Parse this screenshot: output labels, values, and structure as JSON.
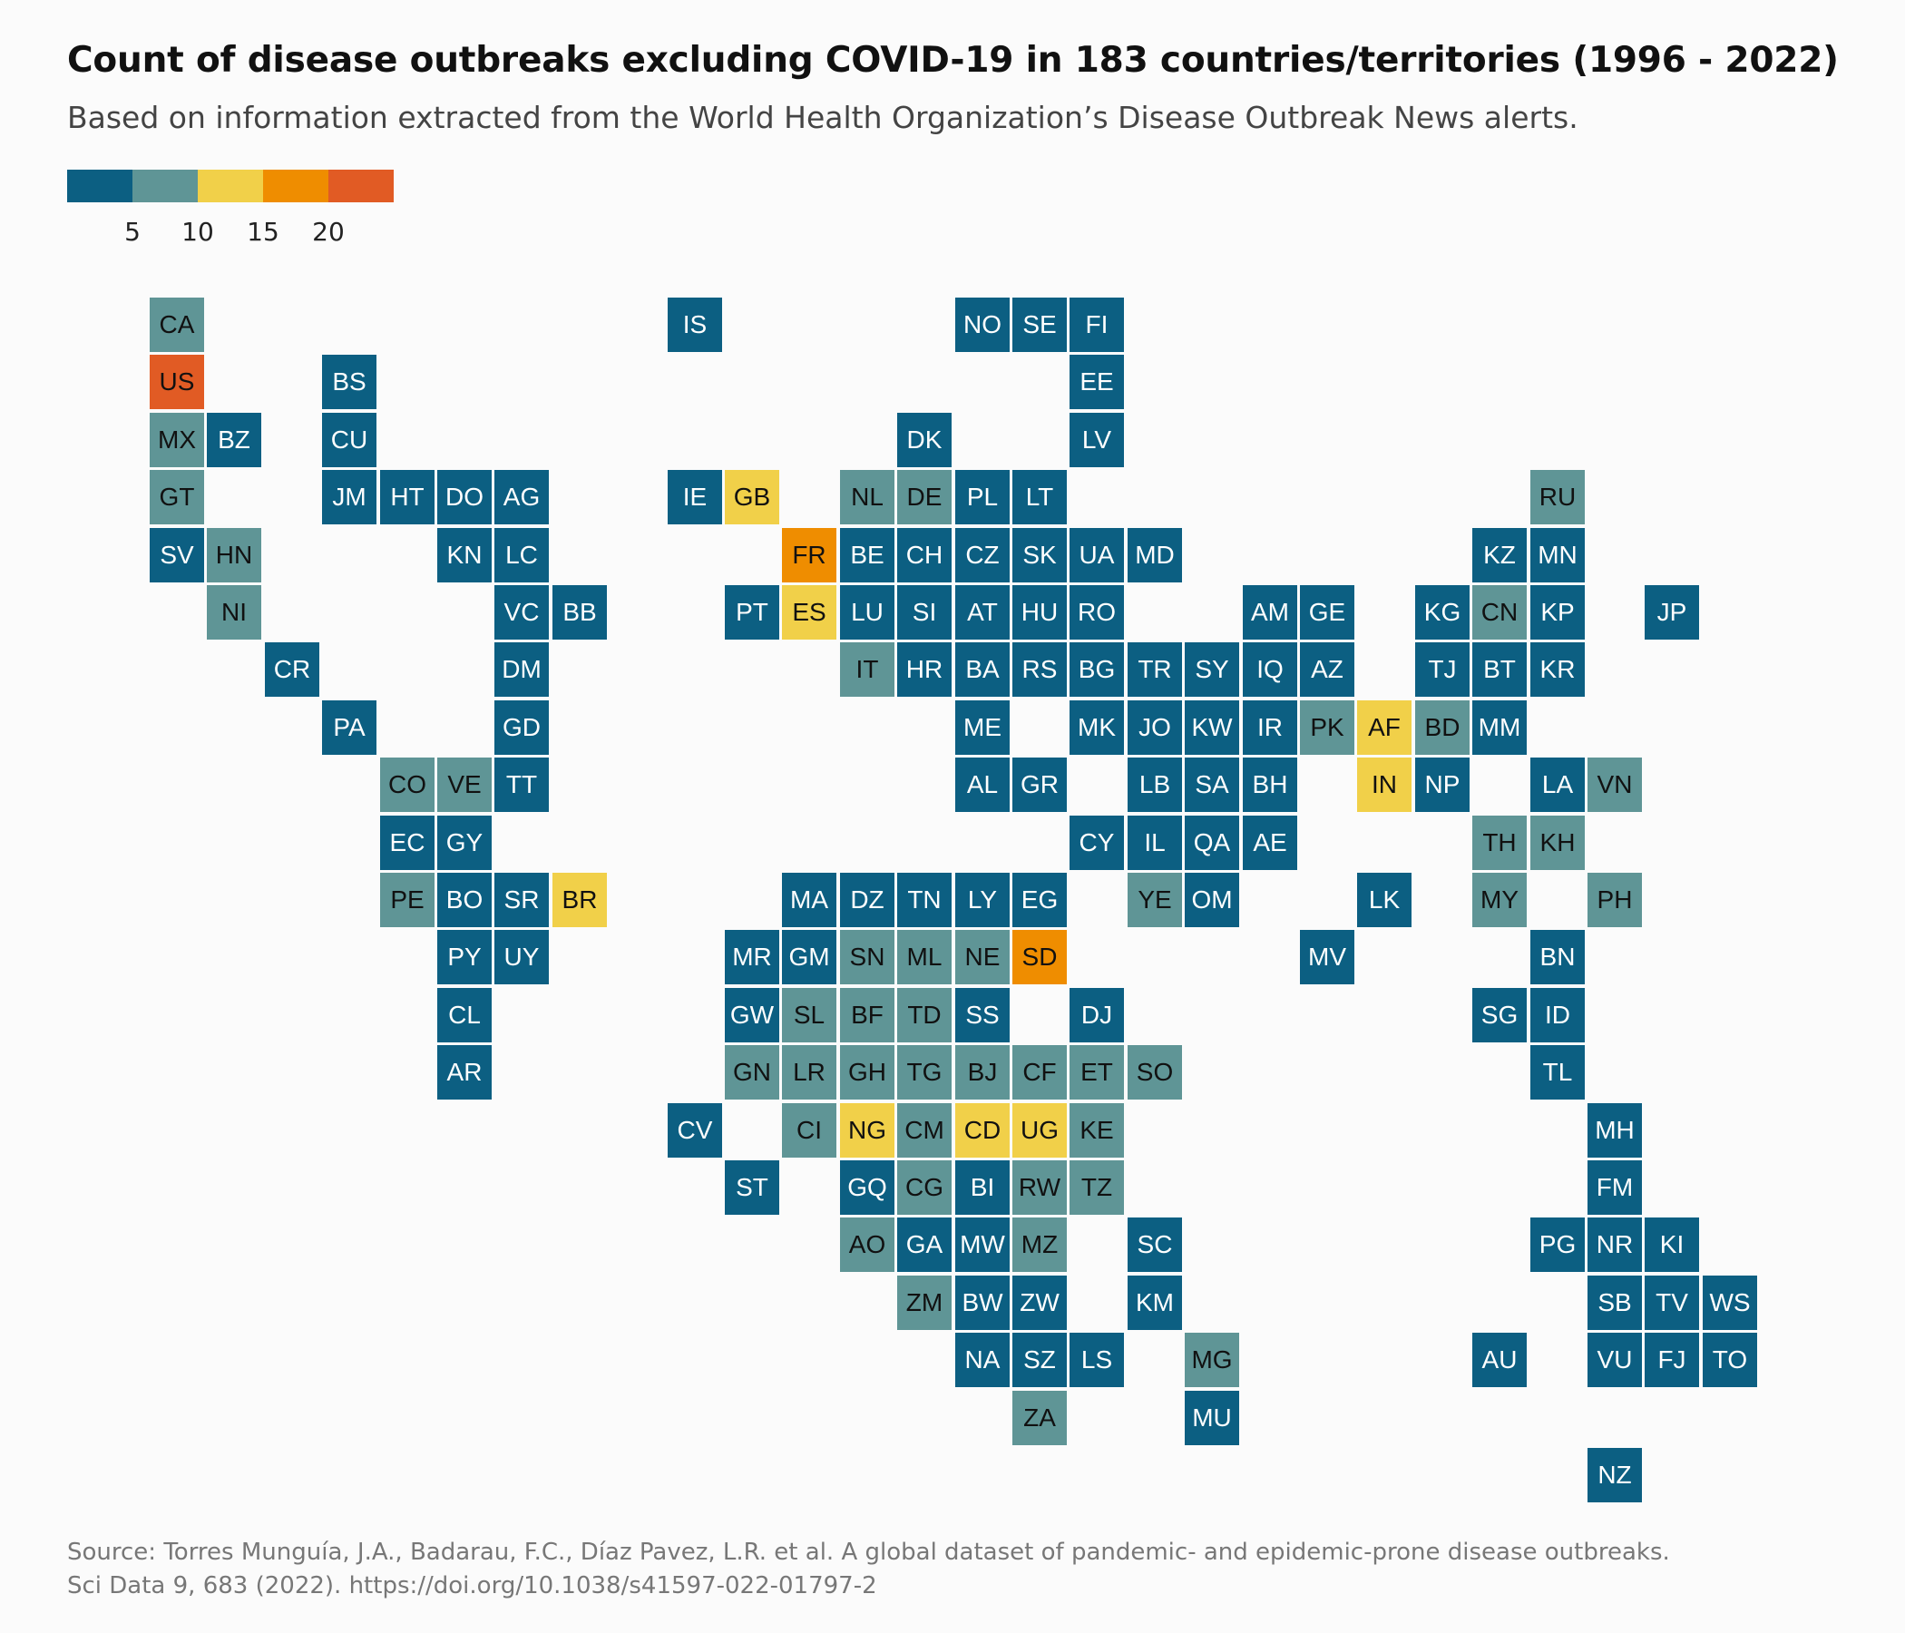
{
  "title": "Count of disease outbreaks excluding COVID-19 in 183 countries/territories (1996 - 2022)",
  "subtitle": "Based on information extracted from the World Health Organization’s Disease Outbreak News alerts.",
  "legend": {
    "colors": [
      "#0c5f82",
      "#5f9596",
      "#f1d049",
      "#ef8d00",
      "#e15b24"
    ],
    "ticks": [
      "5",
      "10",
      "15",
      "20"
    ]
  },
  "source": {
    "line1": "Source: Torres Munguía, J.A., Badarau, F.C., Díaz Pavez, L.R. et al. A global dataset of pandemic- and epidemic-prone disease outbreaks.",
    "line2": "Sci Data 9, 683 (2022). https://doi.org/10.1038/s41597-022-01797-2"
  },
  "chart_data": {
    "type": "tile-grid-map",
    "legend_bins": [
      {
        "label": "<5",
        "color": "#0c5f82"
      },
      {
        "label": "5-10",
        "color": "#5f9596"
      },
      {
        "label": "10-15",
        "color": "#f1d049"
      },
      {
        "label": "15-20",
        "color": "#ef8d00"
      },
      {
        "label": ">20",
        "color": "#e15b24"
      }
    ],
    "tiles": [
      {
        "code": "CA",
        "col": 0,
        "row": 0,
        "bin": 1
      },
      {
        "code": "US",
        "col": 0,
        "row": 1,
        "bin": 4
      },
      {
        "code": "MX",
        "col": 0,
        "row": 2,
        "bin": 1
      },
      {
        "code": "GT",
        "col": 0,
        "row": 3,
        "bin": 1
      },
      {
        "code": "SV",
        "col": 0,
        "row": 4,
        "bin": 0
      },
      {
        "code": "BZ",
        "col": 1,
        "row": 2,
        "bin": 0
      },
      {
        "code": "HN",
        "col": 1,
        "row": 4,
        "bin": 1
      },
      {
        "code": "NI",
        "col": 1,
        "row": 5,
        "bin": 1
      },
      {
        "code": "CR",
        "col": 2,
        "row": 6,
        "bin": 0
      },
      {
        "code": "BS",
        "col": 3,
        "row": 1,
        "bin": 0
      },
      {
        "code": "CU",
        "col": 3,
        "row": 2,
        "bin": 0
      },
      {
        "code": "JM",
        "col": 3,
        "row": 3,
        "bin": 0
      },
      {
        "code": "PA",
        "col": 3,
        "row": 7,
        "bin": 0
      },
      {
        "code": "HT",
        "col": 4,
        "row": 3,
        "bin": 0
      },
      {
        "code": "CO",
        "col": 4,
        "row": 8,
        "bin": 1
      },
      {
        "code": "EC",
        "col": 4,
        "row": 9,
        "bin": 0
      },
      {
        "code": "PE",
        "col": 4,
        "row": 10,
        "bin": 1
      },
      {
        "code": "DO",
        "col": 5,
        "row": 3,
        "bin": 0
      },
      {
        "code": "KN",
        "col": 5,
        "row": 4,
        "bin": 0
      },
      {
        "code": "VE",
        "col": 5,
        "row": 8,
        "bin": 1
      },
      {
        "code": "GY",
        "col": 5,
        "row": 9,
        "bin": 0
      },
      {
        "code": "BO",
        "col": 5,
        "row": 10,
        "bin": 0
      },
      {
        "code": "PY",
        "col": 5,
        "row": 11,
        "bin": 0
      },
      {
        "code": "CL",
        "col": 5,
        "row": 12,
        "bin": 0
      },
      {
        "code": "AR",
        "col": 5,
        "row": 13,
        "bin": 0
      },
      {
        "code": "AG",
        "col": 6,
        "row": 3,
        "bin": 0
      },
      {
        "code": "LC",
        "col": 6,
        "row": 4,
        "bin": 0
      },
      {
        "code": "VC",
        "col": 6,
        "row": 5,
        "bin": 0
      },
      {
        "code": "DM",
        "col": 6,
        "row": 6,
        "bin": 0
      },
      {
        "code": "GD",
        "col": 6,
        "row": 7,
        "bin": 0
      },
      {
        "code": "TT",
        "col": 6,
        "row": 8,
        "bin": 0
      },
      {
        "code": "SR",
        "col": 6,
        "row": 10,
        "bin": 0
      },
      {
        "code": "UY",
        "col": 6,
        "row": 11,
        "bin": 0
      },
      {
        "code": "BB",
        "col": 7,
        "row": 5,
        "bin": 0
      },
      {
        "code": "BR",
        "col": 7,
        "row": 10,
        "bin": 2
      },
      {
        "code": "IS",
        "col": 9,
        "row": 0,
        "bin": 0
      },
      {
        "code": "IE",
        "col": 9,
        "row": 3,
        "bin": 0
      },
      {
        "code": "CV",
        "col": 9,
        "row": 14,
        "bin": 0
      },
      {
        "code": "GB",
        "col": 10,
        "row": 3,
        "bin": 2
      },
      {
        "code": "PT",
        "col": 10,
        "row": 5,
        "bin": 0
      },
      {
        "code": "MR",
        "col": 10,
        "row": 11,
        "bin": 0
      },
      {
        "code": "GW",
        "col": 10,
        "row": 12,
        "bin": 0
      },
      {
        "code": "GN",
        "col": 10,
        "row": 13,
        "bin": 1
      },
      {
        "code": "ST",
        "col": 10,
        "row": 15,
        "bin": 0
      },
      {
        "code": "FR",
        "col": 11,
        "row": 4,
        "bin": 3
      },
      {
        "code": "ES",
        "col": 11,
        "row": 5,
        "bin": 2
      },
      {
        "code": "MA",
        "col": 11,
        "row": 10,
        "bin": 0
      },
      {
        "code": "GM",
        "col": 11,
        "row": 11,
        "bin": 0
      },
      {
        "code": "SL",
        "col": 11,
        "row": 12,
        "bin": 1
      },
      {
        "code": "LR",
        "col": 11,
        "row": 13,
        "bin": 1
      },
      {
        "code": "CI",
        "col": 11,
        "row": 14,
        "bin": 1
      },
      {
        "code": "NL",
        "col": 12,
        "row": 3,
        "bin": 1
      },
      {
        "code": "BE",
        "col": 12,
        "row": 4,
        "bin": 0
      },
      {
        "code": "LU",
        "col": 12,
        "row": 5,
        "bin": 0
      },
      {
        "code": "IT",
        "col": 12,
        "row": 6,
        "bin": 1
      },
      {
        "code": "DZ",
        "col": 12,
        "row": 10,
        "bin": 0
      },
      {
        "code": "SN",
        "col": 12,
        "row": 11,
        "bin": 1
      },
      {
        "code": "BF",
        "col": 12,
        "row": 12,
        "bin": 1
      },
      {
        "code": "GH",
        "col": 12,
        "row": 13,
        "bin": 1
      },
      {
        "code": "NG",
        "col": 12,
        "row": 14,
        "bin": 2
      },
      {
        "code": "GQ",
        "col": 12,
        "row": 15,
        "bin": 0
      },
      {
        "code": "AO",
        "col": 12,
        "row": 16,
        "bin": 1
      },
      {
        "code": "DK",
        "col": 13,
        "row": 2,
        "bin": 0
      },
      {
        "code": "DE",
        "col": 13,
        "row": 3,
        "bin": 1
      },
      {
        "code": "CH",
        "col": 13,
        "row": 4,
        "bin": 0
      },
      {
        "code": "SI",
        "col": 13,
        "row": 5,
        "bin": 0
      },
      {
        "code": "HR",
        "col": 13,
        "row": 6,
        "bin": 0
      },
      {
        "code": "TN",
        "col": 13,
        "row": 10,
        "bin": 0
      },
      {
        "code": "ML",
        "col": 13,
        "row": 11,
        "bin": 1
      },
      {
        "code": "TD",
        "col": 13,
        "row": 12,
        "bin": 1
      },
      {
        "code": "TG",
        "col": 13,
        "row": 13,
        "bin": 1
      },
      {
        "code": "CM",
        "col": 13,
        "row": 14,
        "bin": 1
      },
      {
        "code": "CG",
        "col": 13,
        "row": 15,
        "bin": 1
      },
      {
        "code": "GA",
        "col": 13,
        "row": 16,
        "bin": 0
      },
      {
        "code": "ZM",
        "col": 13,
        "row": 17,
        "bin": 1
      },
      {
        "code": "NO",
        "col": 14,
        "row": 0,
        "bin": 0
      },
      {
        "code": "PL",
        "col": 14,
        "row": 3,
        "bin": 0
      },
      {
        "code": "CZ",
        "col": 14,
        "row": 4,
        "bin": 0
      },
      {
        "code": "AT",
        "col": 14,
        "row": 5,
        "bin": 0
      },
      {
        "code": "BA",
        "col": 14,
        "row": 6,
        "bin": 0
      },
      {
        "code": "ME",
        "col": 14,
        "row": 7,
        "bin": 0
      },
      {
        "code": "AL",
        "col": 14,
        "row": 8,
        "bin": 0
      },
      {
        "code": "LY",
        "col": 14,
        "row": 10,
        "bin": 0
      },
      {
        "code": "NE",
        "col": 14,
        "row": 11,
        "bin": 1
      },
      {
        "code": "SS",
        "col": 14,
        "row": 12,
        "bin": 0
      },
      {
        "code": "BJ",
        "col": 14,
        "row": 13,
        "bin": 1
      },
      {
        "code": "CD",
        "col": 14,
        "row": 14,
        "bin": 2
      },
      {
        "code": "BI",
        "col": 14,
        "row": 15,
        "bin": 0
      },
      {
        "code": "MW",
        "col": 14,
        "row": 16,
        "bin": 0
      },
      {
        "code": "BW",
        "col": 14,
        "row": 17,
        "bin": 0
      },
      {
        "code": "NA",
        "col": 14,
        "row": 18,
        "bin": 0
      },
      {
        "code": "SE",
        "col": 15,
        "row": 0,
        "bin": 0
      },
      {
        "code": "LT",
        "col": 15,
        "row": 3,
        "bin": 0
      },
      {
        "code": "SK",
        "col": 15,
        "row": 4,
        "bin": 0
      },
      {
        "code": "HU",
        "col": 15,
        "row": 5,
        "bin": 0
      },
      {
        "code": "RS",
        "col": 15,
        "row": 6,
        "bin": 0
      },
      {
        "code": "GR",
        "col": 15,
        "row": 8,
        "bin": 0
      },
      {
        "code": "EG",
        "col": 15,
        "row": 10,
        "bin": 0
      },
      {
        "code": "SD",
        "col": 15,
        "row": 11,
        "bin": 3
      },
      {
        "code": "CF",
        "col": 15,
        "row": 13,
        "bin": 1
      },
      {
        "code": "UG",
        "col": 15,
        "row": 14,
        "bin": 2
      },
      {
        "code": "RW",
        "col": 15,
        "row": 15,
        "bin": 1
      },
      {
        "code": "MZ",
        "col": 15,
        "row": 16,
        "bin": 1
      },
      {
        "code": "ZW",
        "col": 15,
        "row": 17,
        "bin": 0
      },
      {
        "code": "SZ",
        "col": 15,
        "row": 18,
        "bin": 0
      },
      {
        "code": "ZA",
        "col": 15,
        "row": 19,
        "bin": 1
      },
      {
        "code": "FI",
        "col": 16,
        "row": 0,
        "bin": 0
      },
      {
        "code": "EE",
        "col": 16,
        "row": 1,
        "bin": 0
      },
      {
        "code": "LV",
        "col": 16,
        "row": 2,
        "bin": 0
      },
      {
        "code": "UA",
        "col": 16,
        "row": 4,
        "bin": 0
      },
      {
        "code": "RO",
        "col": 16,
        "row": 5,
        "bin": 0
      },
      {
        "code": "BG",
        "col": 16,
        "row": 6,
        "bin": 0
      },
      {
        "code": "MK",
        "col": 16,
        "row": 7,
        "bin": 0
      },
      {
        "code": "CY",
        "col": 16,
        "row": 9,
        "bin": 0
      },
      {
        "code": "DJ",
        "col": 16,
        "row": 12,
        "bin": 0
      },
      {
        "code": "ET",
        "col": 16,
        "row": 13,
        "bin": 1
      },
      {
        "code": "KE",
        "col": 16,
        "row": 14,
        "bin": 1
      },
      {
        "code": "TZ",
        "col": 16,
        "row": 15,
        "bin": 1
      },
      {
        "code": "LS",
        "col": 16,
        "row": 18,
        "bin": 0
      },
      {
        "code": "MD",
        "col": 17,
        "row": 4,
        "bin": 0
      },
      {
        "code": "TR",
        "col": 17,
        "row": 6,
        "bin": 0
      },
      {
        "code": "JO",
        "col": 17,
        "row": 7,
        "bin": 0
      },
      {
        "code": "LB",
        "col": 17,
        "row": 8,
        "bin": 0
      },
      {
        "code": "IL",
        "col": 17,
        "row": 9,
        "bin": 0
      },
      {
        "code": "YE",
        "col": 17,
        "row": 10,
        "bin": 1
      },
      {
        "code": "SO",
        "col": 17,
        "row": 13,
        "bin": 1
      },
      {
        "code": "SC",
        "col": 17,
        "row": 16,
        "bin": 0
      },
      {
        "code": "KM",
        "col": 17,
        "row": 17,
        "bin": 0
      },
      {
        "code": "SY",
        "col": 18,
        "row": 6,
        "bin": 0
      },
      {
        "code": "KW",
        "col": 18,
        "row": 7,
        "bin": 0
      },
      {
        "code": "SA",
        "col": 18,
        "row": 8,
        "bin": 0
      },
      {
        "code": "QA",
        "col": 18,
        "row": 9,
        "bin": 0
      },
      {
        "code": "OM",
        "col": 18,
        "row": 10,
        "bin": 0
      },
      {
        "code": "MG",
        "col": 18,
        "row": 18,
        "bin": 1
      },
      {
        "code": "MU",
        "col": 18,
        "row": 19,
        "bin": 0
      },
      {
        "code": "AM",
        "col": 19,
        "row": 5,
        "bin": 0
      },
      {
        "code": "IQ",
        "col": 19,
        "row": 6,
        "bin": 0
      },
      {
        "code": "IR",
        "col": 19,
        "row": 7,
        "bin": 0
      },
      {
        "code": "BH",
        "col": 19,
        "row": 8,
        "bin": 0
      },
      {
        "code": "AE",
        "col": 19,
        "row": 9,
        "bin": 0
      },
      {
        "code": "GE",
        "col": 20,
        "row": 5,
        "bin": 0
      },
      {
        "code": "AZ",
        "col": 20,
        "row": 6,
        "bin": 0
      },
      {
        "code": "PK",
        "col": 20,
        "row": 7,
        "bin": 1
      },
      {
        "code": "MV",
        "col": 20,
        "row": 11,
        "bin": 0
      },
      {
        "code": "AF",
        "col": 21,
        "row": 7,
        "bin": 2
      },
      {
        "code": "IN",
        "col": 21,
        "row": 8,
        "bin": 2
      },
      {
        "code": "LK",
        "col": 21,
        "row": 10,
        "bin": 0
      },
      {
        "code": "KG",
        "col": 22,
        "row": 5,
        "bin": 0
      },
      {
        "code": "TJ",
        "col": 22,
        "row": 6,
        "bin": 0
      },
      {
        "code": "BD",
        "col": 22,
        "row": 7,
        "bin": 1
      },
      {
        "code": "NP",
        "col": 22,
        "row": 8,
        "bin": 0
      },
      {
        "code": "KZ",
        "col": 23,
        "row": 4,
        "bin": 0
      },
      {
        "code": "CN",
        "col": 23,
        "row": 5,
        "bin": 1
      },
      {
        "code": "BT",
        "col": 23,
        "row": 6,
        "bin": 0
      },
      {
        "code": "MM",
        "col": 23,
        "row": 7,
        "bin": 0
      },
      {
        "code": "TH",
        "col": 23,
        "row": 9,
        "bin": 1
      },
      {
        "code": "MY",
        "col": 23,
        "row": 10,
        "bin": 1
      },
      {
        "code": "SG",
        "col": 23,
        "row": 12,
        "bin": 0
      },
      {
        "code": "AU",
        "col": 23,
        "row": 18,
        "bin": 0
      },
      {
        "code": "RU",
        "col": 24,
        "row": 3,
        "bin": 1
      },
      {
        "code": "MN",
        "col": 24,
        "row": 4,
        "bin": 0
      },
      {
        "code": "KP",
        "col": 24,
        "row": 5,
        "bin": 0
      },
      {
        "code": "KR",
        "col": 24,
        "row": 6,
        "bin": 0
      },
      {
        "code": "LA",
        "col": 24,
        "row": 8,
        "bin": 0
      },
      {
        "code": "KH",
        "col": 24,
        "row": 9,
        "bin": 1
      },
      {
        "code": "BN",
        "col": 24,
        "row": 11,
        "bin": 0
      },
      {
        "code": "ID",
        "col": 24,
        "row": 12,
        "bin": 0
      },
      {
        "code": "TL",
        "col": 24,
        "row": 13,
        "bin": 0
      },
      {
        "code": "PG",
        "col": 24,
        "row": 16,
        "bin": 0
      },
      {
        "code": "VN",
        "col": 25,
        "row": 8,
        "bin": 1
      },
      {
        "code": "PH",
        "col": 25,
        "row": 10,
        "bin": 1
      },
      {
        "code": "MH",
        "col": 25,
        "row": 14,
        "bin": 0
      },
      {
        "code": "FM",
        "col": 25,
        "row": 15,
        "bin": 0
      },
      {
        "code": "NR",
        "col": 25,
        "row": 16,
        "bin": 0
      },
      {
        "code": "SB",
        "col": 25,
        "row": 17,
        "bin": 0
      },
      {
        "code": "VU",
        "col": 25,
        "row": 18,
        "bin": 0
      },
      {
        "code": "NZ",
        "col": 25,
        "row": 20,
        "bin": 0
      },
      {
        "code": "JP",
        "col": 26,
        "row": 5,
        "bin": 0
      },
      {
        "code": "KI",
        "col": 26,
        "row": 16,
        "bin": 0
      },
      {
        "code": "TV",
        "col": 26,
        "row": 17,
        "bin": 0
      },
      {
        "code": "FJ",
        "col": 26,
        "row": 18,
        "bin": 0
      },
      {
        "code": "WS",
        "col": 27,
        "row": 17,
        "bin": 0
      },
      {
        "code": "TO",
        "col": 27,
        "row": 18,
        "bin": 0
      }
    ]
  }
}
